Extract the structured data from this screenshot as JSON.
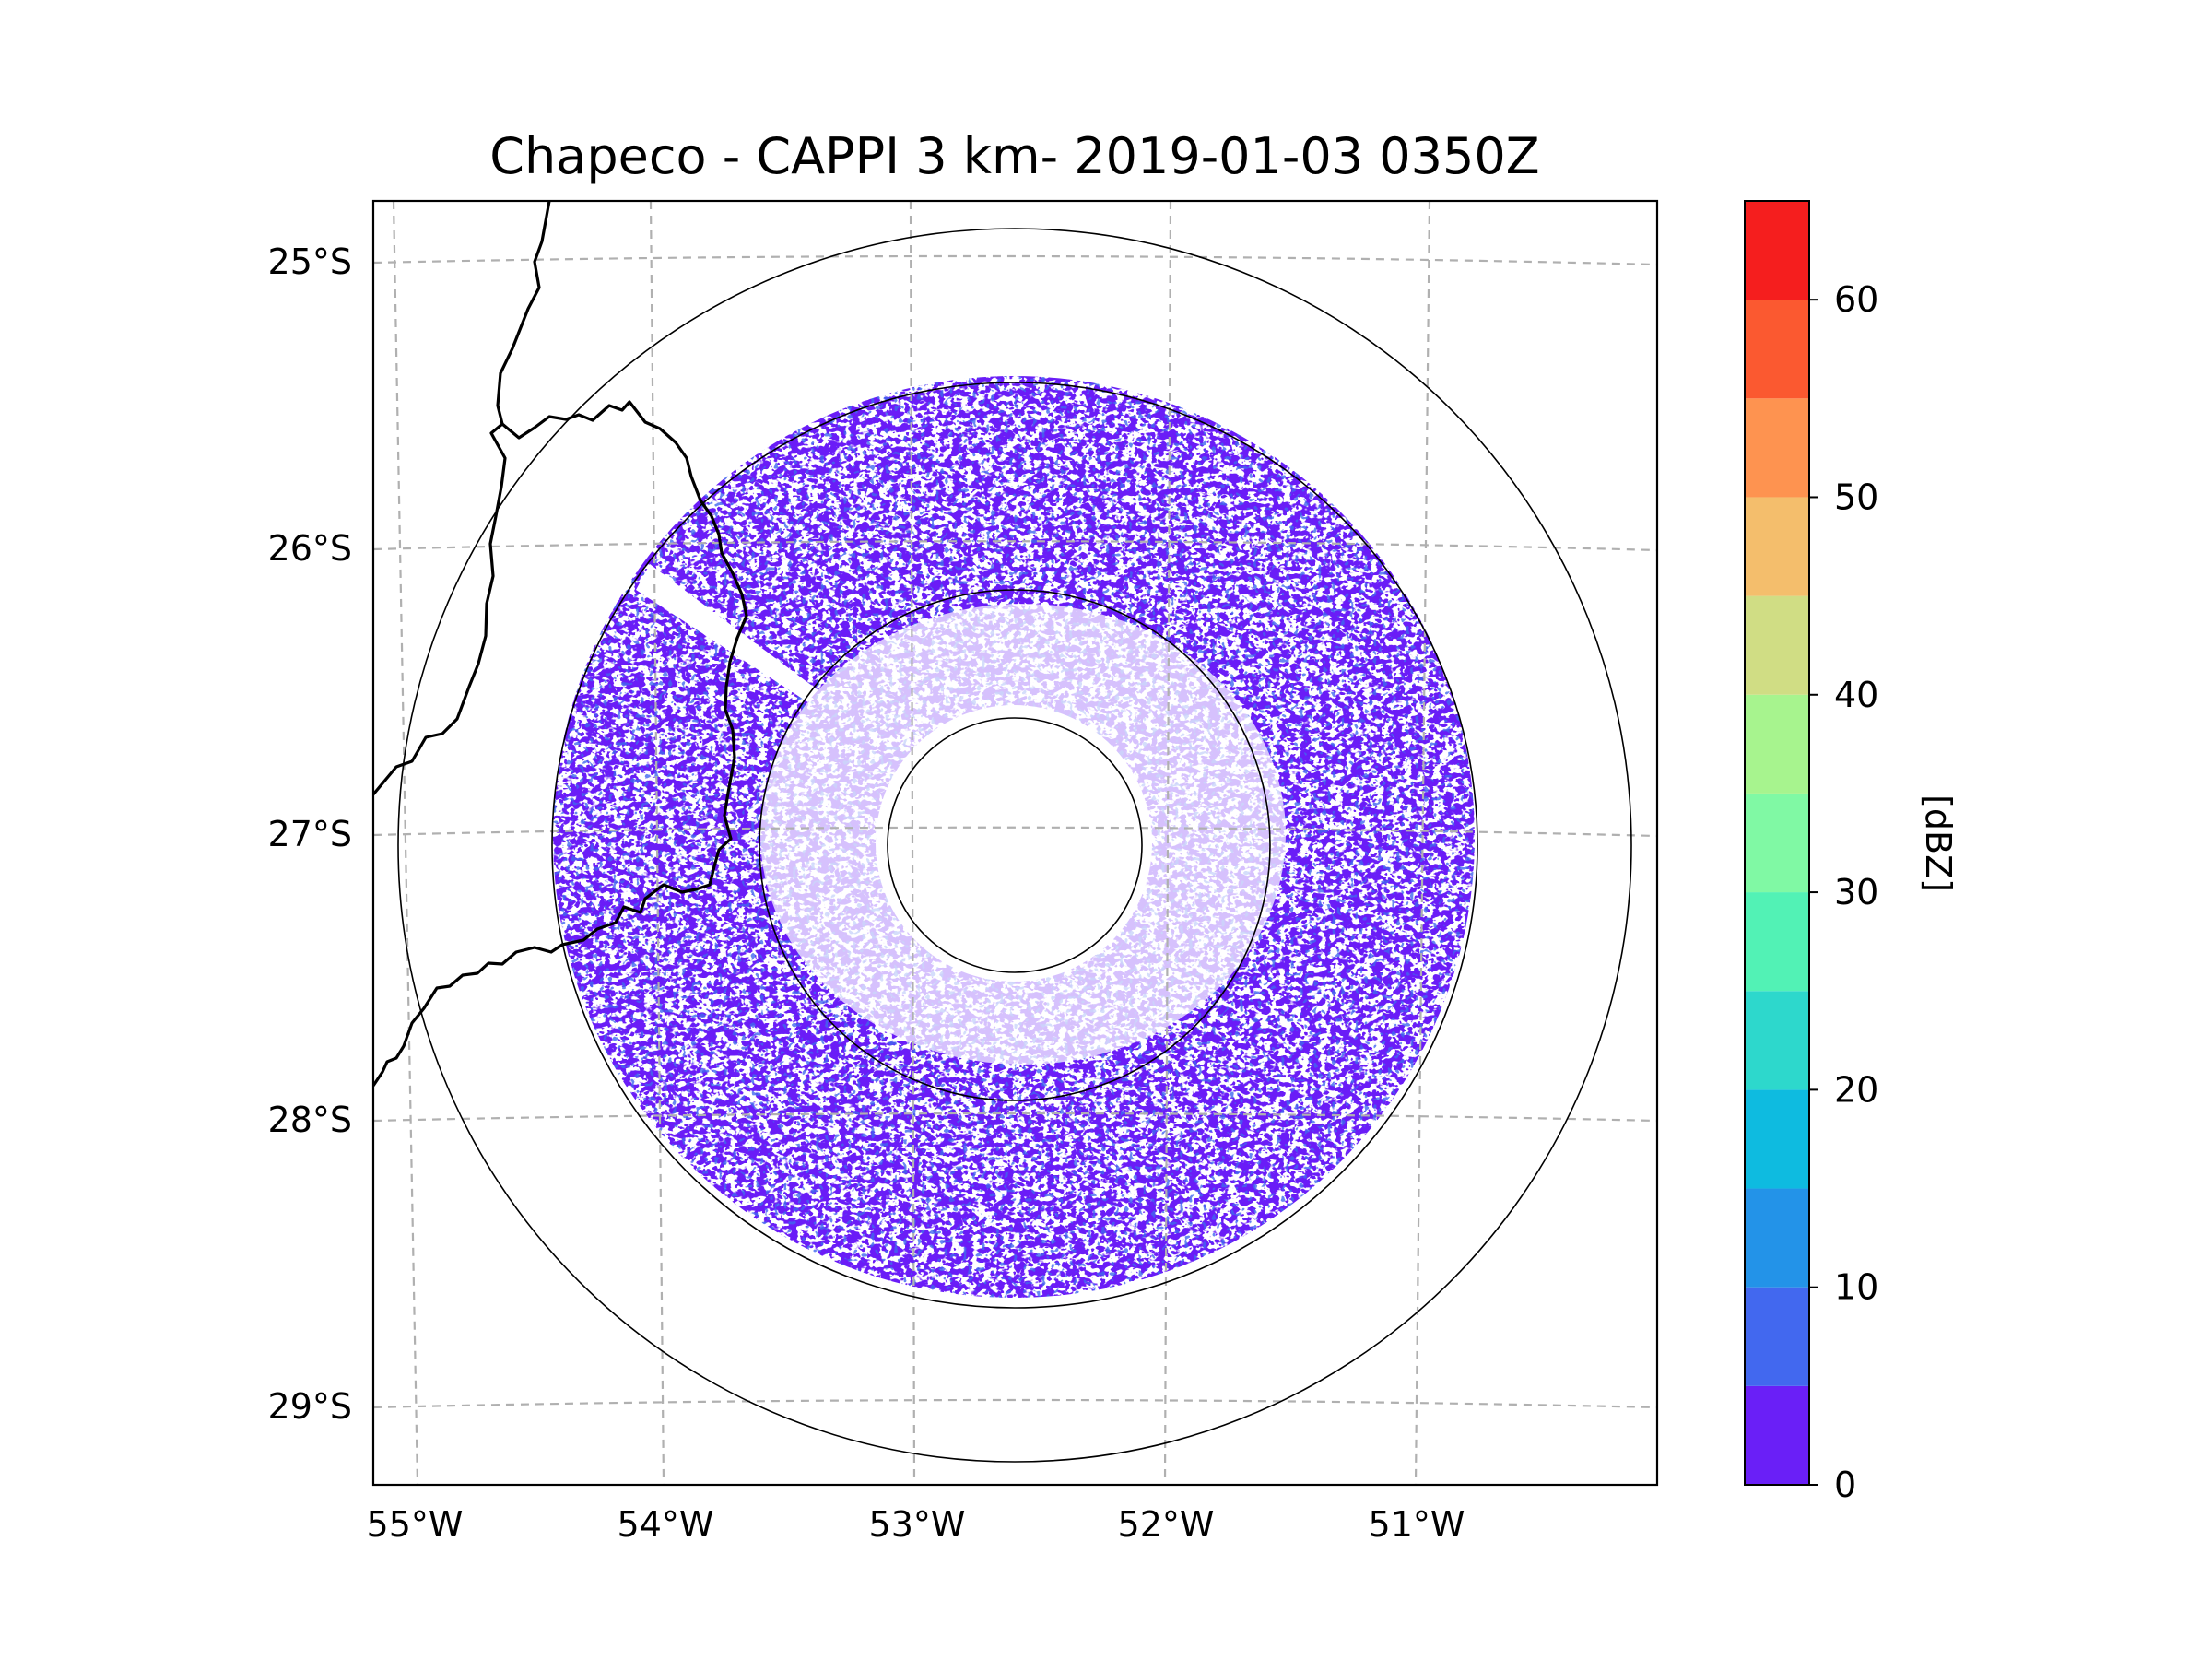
{
  "title": "Chapeco - CAPPI 3 km- 2019-01-03 0350Z",
  "map": {
    "lon_ticks": [
      "55°W",
      "54°W",
      "53°W",
      "52°W",
      "51°W"
    ],
    "lat_ticks": [
      "25°S",
      "26°S",
      "27°S",
      "28°S",
      "29°S"
    ]
  },
  "radar": {
    "site": "Chapeco",
    "product": "CAPPI",
    "altitude": "3 km",
    "datetime": "2019-01-03 0350Z"
  },
  "colorbar": {
    "label": "[dBZ]",
    "ticks": [
      "0",
      "10",
      "20",
      "30",
      "40",
      "50",
      "60"
    ],
    "min": 0,
    "max": 65,
    "step": 5,
    "colors": [
      "#6a1ff7",
      "#4268ef",
      "#2393e8",
      "#0ebbe0",
      "#2dd8cc",
      "#52f2b5",
      "#80f9a4",
      "#a7f48e",
      "#d0dd84",
      "#f4be6c",
      "#fe9350",
      "#fb5930",
      "#f51e1e"
    ]
  }
}
